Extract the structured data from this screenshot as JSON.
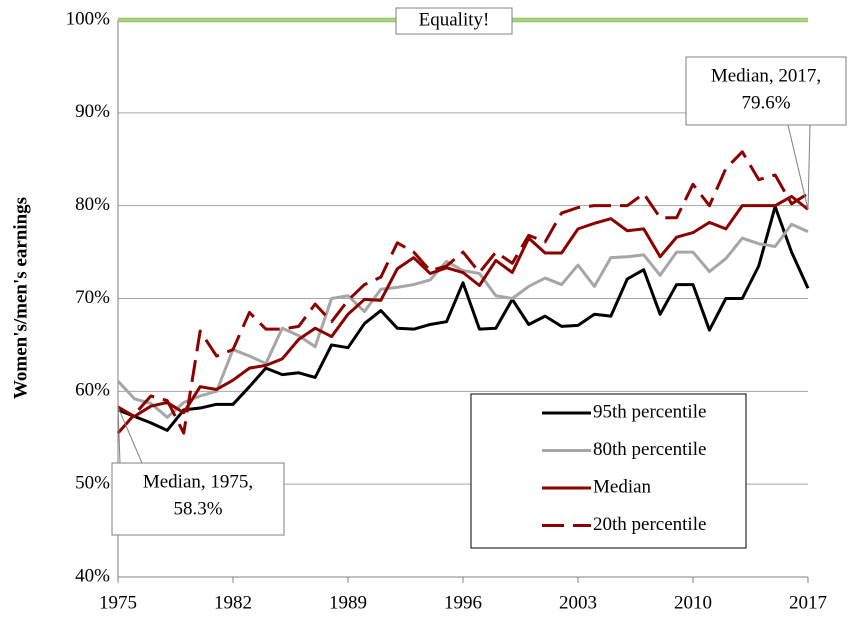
{
  "chart_data": {
    "type": "line",
    "y_label": "Women's/men's earnings",
    "x": [
      1975,
      1976,
      1977,
      1978,
      1979,
      1980,
      1981,
      1982,
      1983,
      1984,
      1985,
      1986,
      1987,
      1988,
      1989,
      1990,
      1991,
      1992,
      1993,
      1994,
      1995,
      1996,
      1997,
      1998,
      1999,
      2000,
      2001,
      2002,
      2003,
      2004,
      2005,
      2006,
      2007,
      2008,
      2009,
      2010,
      2011,
      2012,
      2013,
      2014,
      2015,
      2016,
      2017
    ],
    "xlim": [
      1975,
      2017
    ],
    "xticks": [
      1975,
      1982,
      1989,
      1996,
      2003,
      2010,
      2017
    ],
    "ylim": [
      40,
      100
    ],
    "yticks": [
      {
        "value": 40,
        "label": "40%"
      },
      {
        "value": 50,
        "label": "50%"
      },
      {
        "value": 60,
        "label": "60%"
      },
      {
        "value": 70,
        "label": "70%"
      },
      {
        "value": 80,
        "label": "80%"
      },
      {
        "value": 90,
        "label": "90%"
      },
      {
        "value": 100,
        "label": "100%"
      }
    ],
    "grid": true,
    "legend": "lower right",
    "reference_line": {
      "value": 100,
      "label": "Equality!",
      "color": "#92d050"
    },
    "series": [
      {
        "name": "95th percentile",
        "color": "#000000",
        "style": "solid",
        "values": [
          58.0,
          57.3,
          56.6,
          55.8,
          58.0,
          58.2,
          58.6,
          58.6,
          60.5,
          62.5,
          61.8,
          62.0,
          61.5,
          65.0,
          64.7,
          67.3,
          68.7,
          66.8,
          66.7,
          67.2,
          67.5,
          71.7,
          66.7,
          66.8,
          69.9,
          67.2,
          68.1,
          67.0,
          67.1,
          68.3,
          68.1,
          72.1,
          73.1,
          68.3,
          71.5,
          71.5,
          66.6,
          70.0,
          70.0,
          73.5,
          79.9,
          75.0,
          71.1
        ]
      },
      {
        "name": "80th percentile",
        "color": "#a6a6a6",
        "style": "solid",
        "values": [
          61.1,
          59.2,
          58.7,
          57.2,
          58.8,
          59.5,
          60.0,
          64.5,
          63.8,
          63.0,
          66.8,
          66.0,
          64.8,
          70.0,
          70.3,
          68.6,
          71.0,
          71.2,
          71.5,
          72.0,
          74.0,
          73.0,
          72.7,
          70.3,
          70.0,
          71.3,
          72.2,
          71.5,
          73.6,
          71.3,
          74.4,
          74.5,
          74.7,
          72.5,
          75.0,
          75.0,
          72.9,
          74.3,
          76.5,
          75.9,
          75.6,
          78.0,
          77.2
        ]
      },
      {
        "name": "Median",
        "color": "#8b0000",
        "style": "solid",
        "values": [
          58.3,
          57.3,
          58.4,
          58.8,
          57.7,
          60.5,
          60.2,
          61.2,
          62.5,
          62.8,
          63.5,
          65.6,
          66.8,
          65.9,
          68.3,
          69.9,
          69.8,
          73.2,
          74.4,
          72.7,
          73.3,
          72.8,
          71.4,
          74.1,
          72.8,
          76.5,
          74.9,
          74.9,
          77.5,
          78.1,
          78.6,
          77.3,
          77.5,
          74.5,
          76.6,
          77.1,
          78.2,
          77.5,
          80.0,
          80.0,
          80.0,
          81.0,
          79.6
        ]
      },
      {
        "name": "20th percentile",
        "color": "#8b0000",
        "style": "dashed",
        "values": [
          55.5,
          57.5,
          59.5,
          59.0,
          55.5,
          66.5,
          63.8,
          64.5,
          68.5,
          66.7,
          66.7,
          67.0,
          69.4,
          67.5,
          69.8,
          71.5,
          72.3,
          76.0,
          75.0,
          73.0,
          73.5,
          75.0,
          72.8,
          75.0,
          73.8,
          76.8,
          76.1,
          79.2,
          79.8,
          80.0,
          80.0,
          80.0,
          81.3,
          78.7,
          78.7,
          82.3,
          80.0,
          84.0,
          85.8,
          82.8,
          83.3,
          80.2,
          81.3
        ]
      }
    ],
    "annotations": [
      {
        "lines": [
          "Median, 1975,",
          "58.3%"
        ],
        "x": 1975,
        "y": 58.3
      },
      {
        "lines": [
          "Median, 2017,",
          "79.6%"
        ],
        "x": 2017,
        "y": 79.6
      }
    ]
  }
}
